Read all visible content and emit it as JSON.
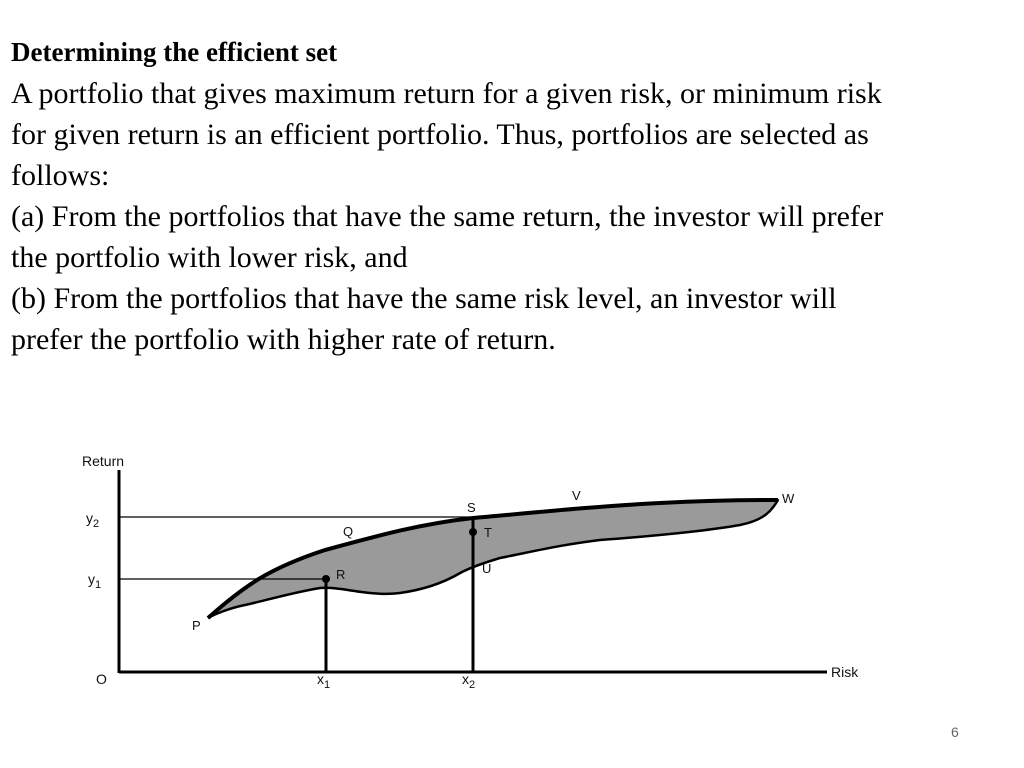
{
  "slide": {
    "heading": "Determining the efficient set",
    "body_lines": [
      "A portfolio that gives maximum return for a given risk, or minimum risk",
      "for given return is an efficient portfolio. Thus, portfolios are selected as",
      "follows:",
      "(a) From the portfolios that have the same return, the investor will prefer",
      "the portfolio with lower risk, and",
      "(b) From the portfolios that have the same risk level, an investor will",
      "prefer the portfolio with higher rate of return."
    ],
    "page_number": "6"
  },
  "diagram": {
    "y_axis_label": "Return",
    "x_axis_label": "Risk",
    "origin_label": "O",
    "y_ticks": {
      "y2": {
        "base": "y",
        "sub": "2"
      },
      "y1": {
        "base": "y",
        "sub": "1"
      }
    },
    "x_ticks": {
      "x1": {
        "base": "x",
        "sub": "1"
      },
      "x2": {
        "base": "x",
        "sub": "2"
      }
    },
    "point_labels": {
      "P": "P",
      "Q": "Q",
      "R": "R",
      "S": "S",
      "T": "T",
      "U": "U",
      "V": "V",
      "W": "W"
    },
    "colors": {
      "region_fill": "#9a9a9a",
      "line": "#000000"
    }
  }
}
